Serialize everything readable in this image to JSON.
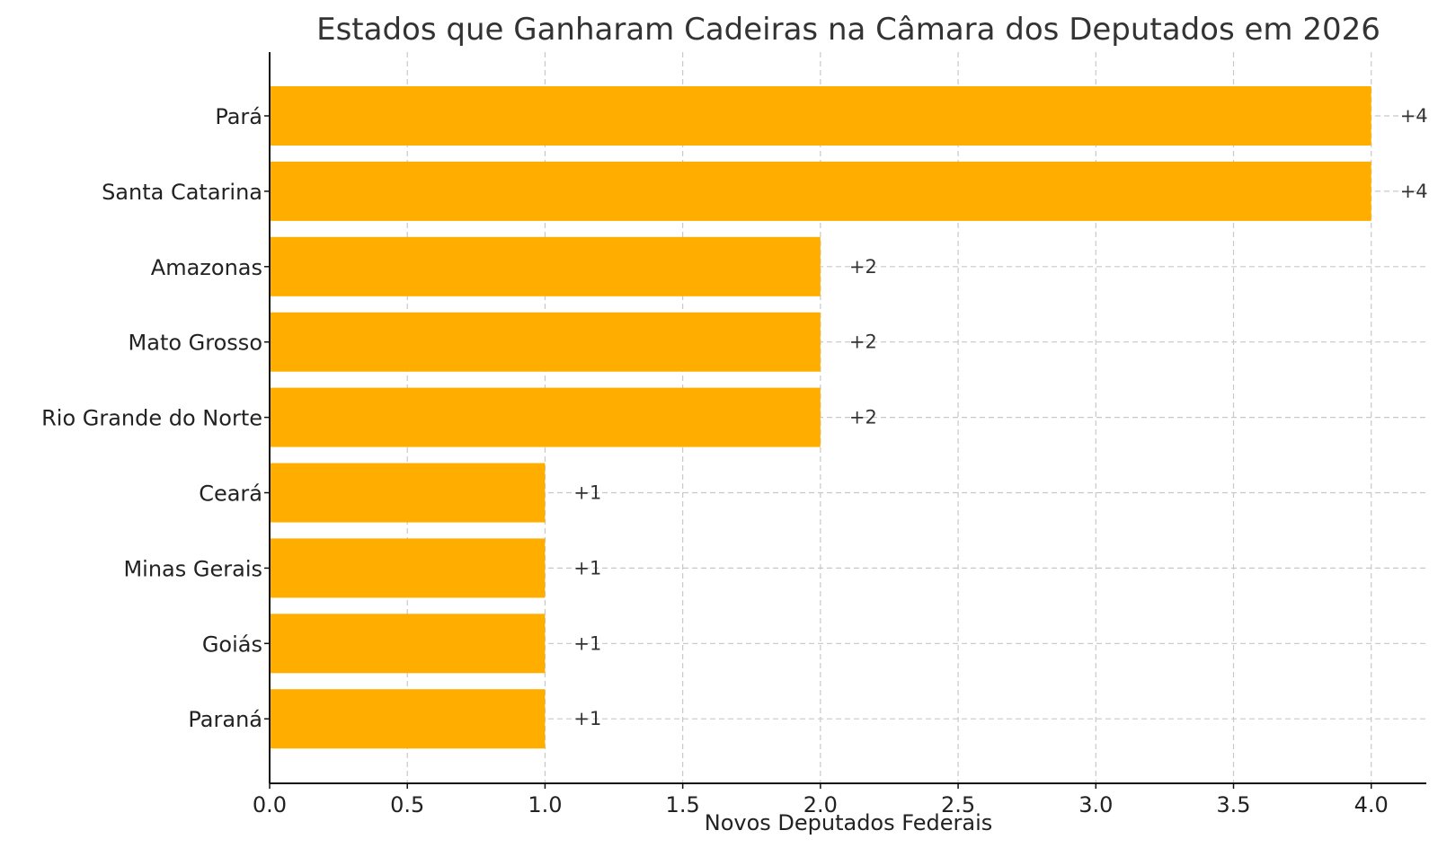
{
  "chart_data": {
    "type": "bar",
    "orientation": "horizontal",
    "title": "Estados que Ganharam Cadeiras na Câmara dos Deputados em 2026",
    "xlabel": "Novos Deputados Federais",
    "ylabel": "",
    "categories": [
      "Pará",
      "Santa Catarina",
      "Amazonas",
      "Mato Grosso",
      "Rio Grande do Norte",
      "Ceará",
      "Minas Gerais",
      "Goiás",
      "Paraná"
    ],
    "values": [
      4,
      4,
      2,
      2,
      2,
      1,
      1,
      1,
      1
    ],
    "data_labels": [
      "+4",
      "+4",
      "+2",
      "+2",
      "+2",
      "+1",
      "+1",
      "+1",
      "+1"
    ],
    "xlim": [
      0,
      4.2
    ],
    "xticks": [
      0.0,
      0.5,
      1.0,
      1.5,
      2.0,
      2.5,
      3.0,
      3.5,
      4.0
    ],
    "xtick_labels": [
      "0.0",
      "0.5",
      "1.0",
      "1.5",
      "2.0",
      "2.5",
      "3.0",
      "3.5",
      "4.0"
    ],
    "grid": true,
    "bar_color": "#FFAE00"
  }
}
